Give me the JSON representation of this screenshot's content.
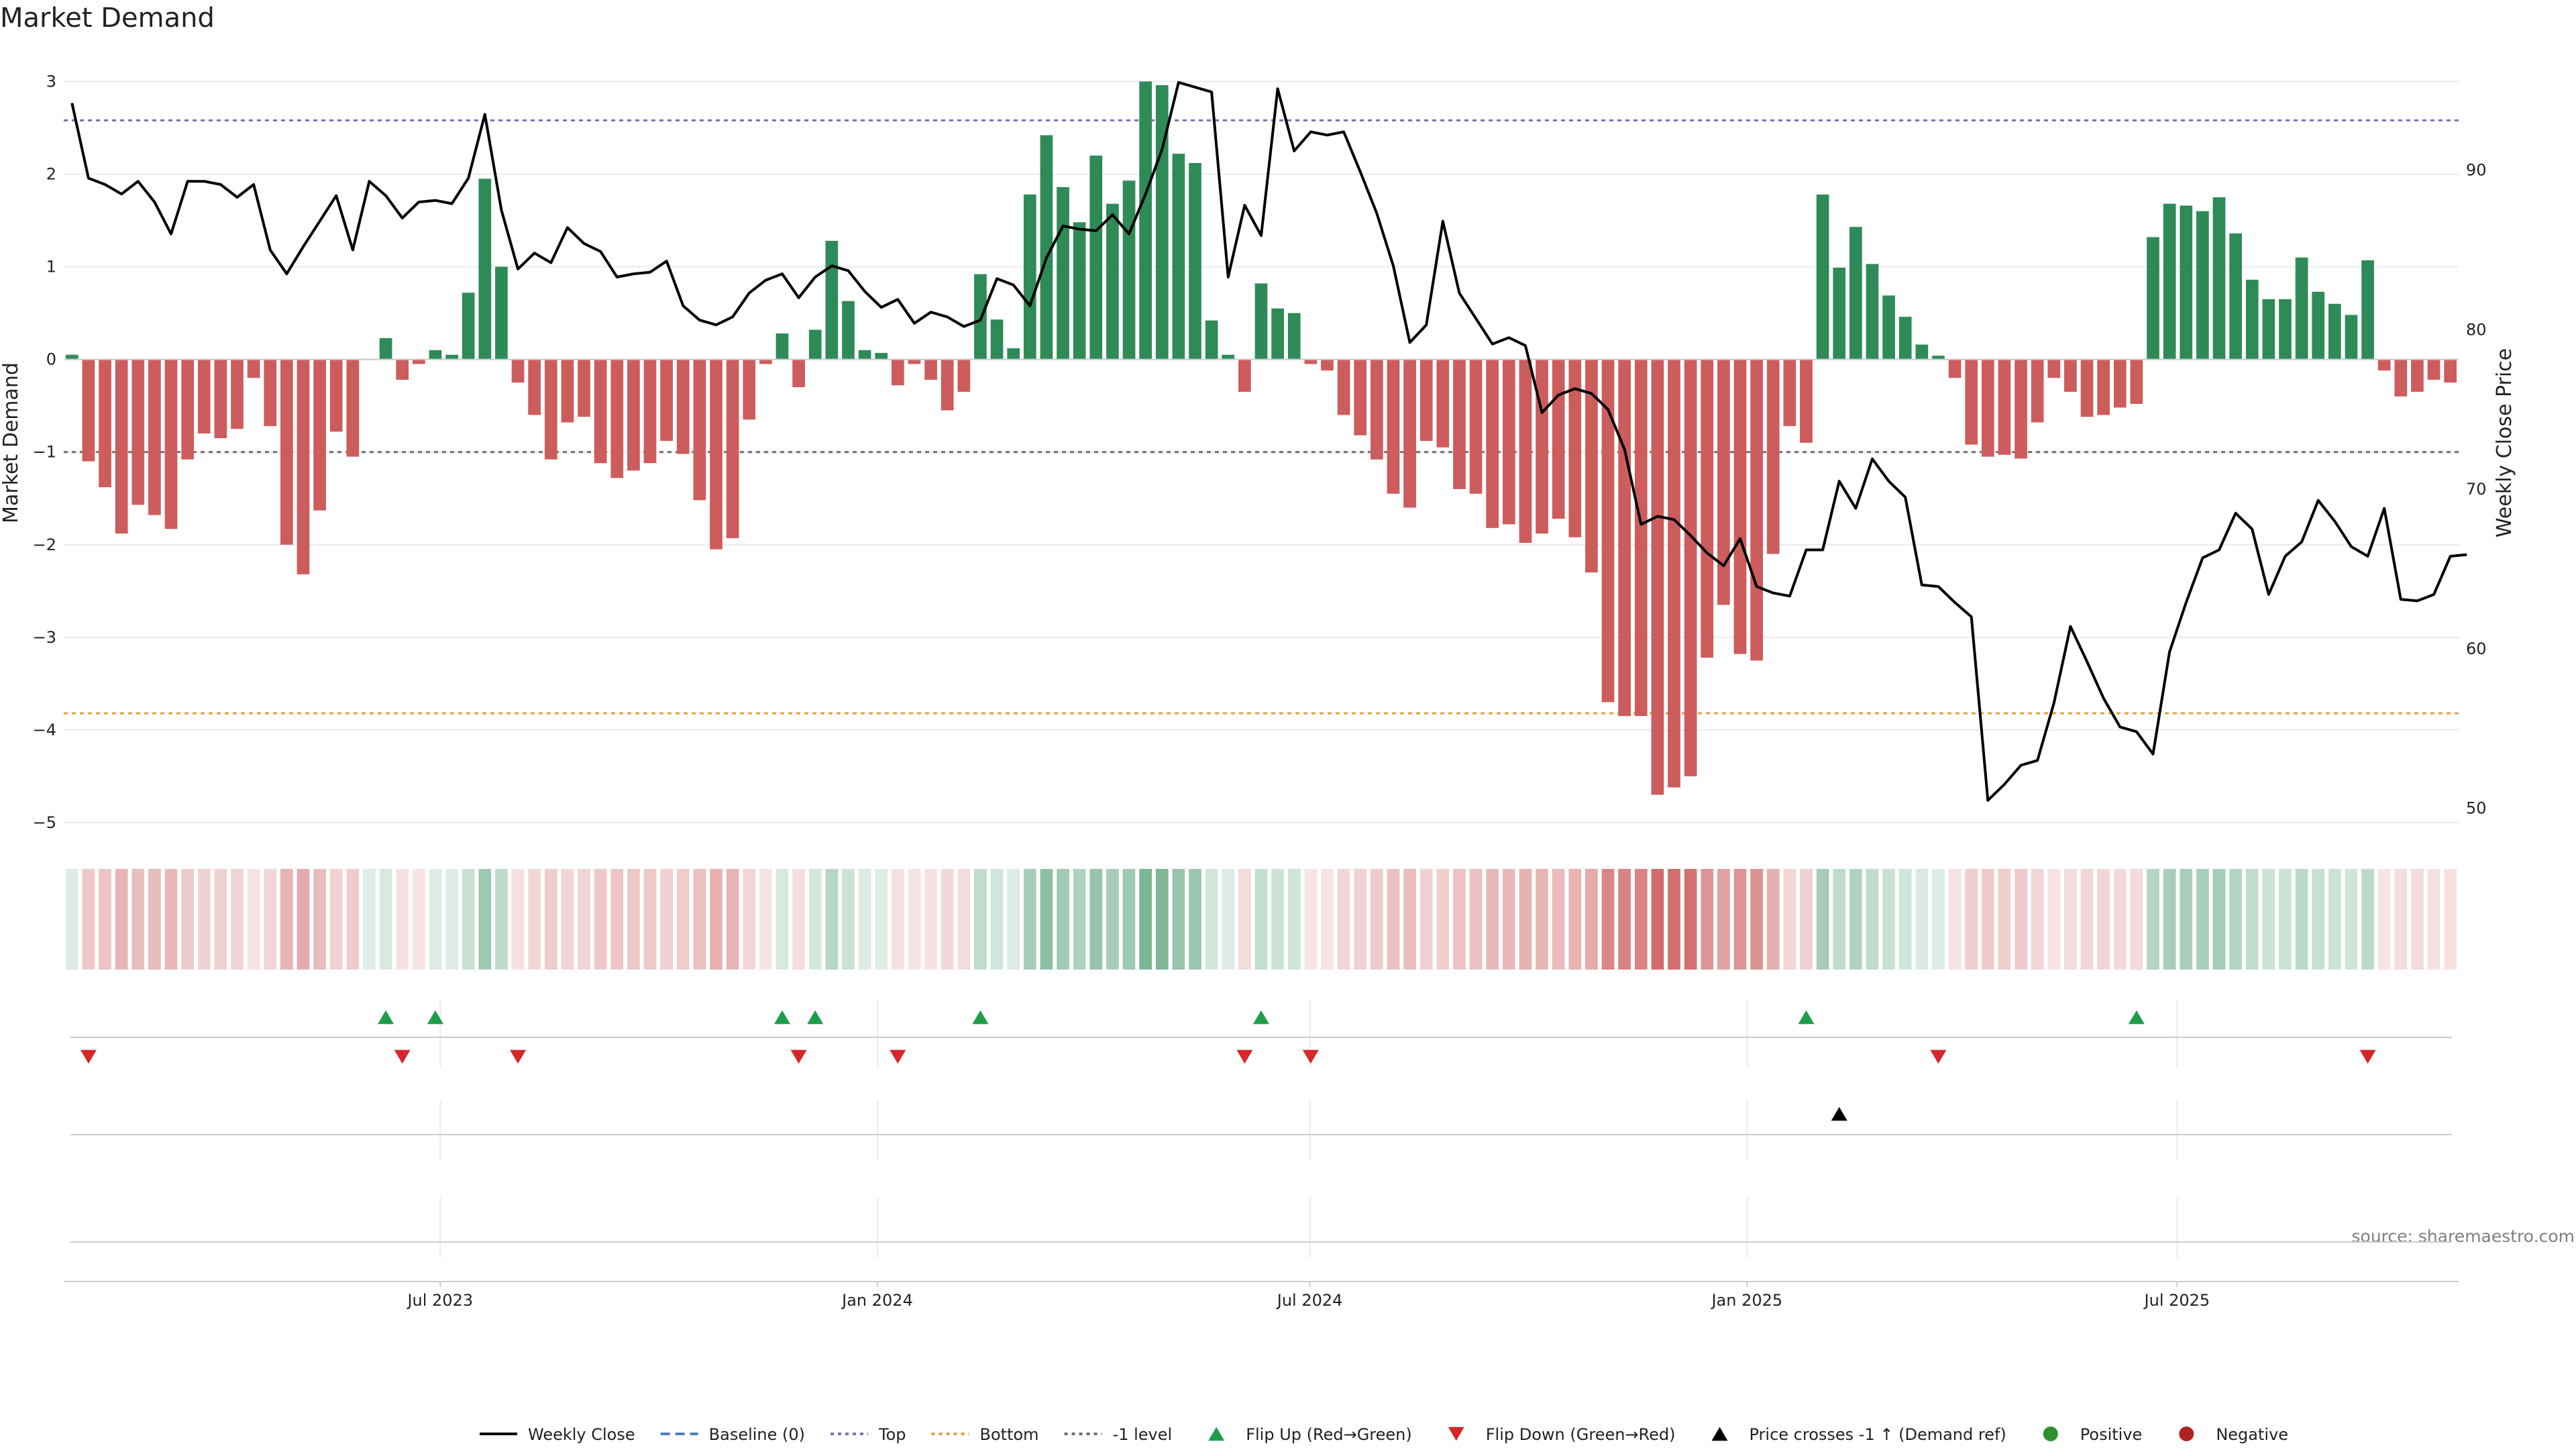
{
  "chart_data": {
    "type": "bar",
    "title": "Market Demand",
    "ylabel": "Market Demand",
    "y2label": "Weekly Close Price",
    "ylim": [
      -5.5,
      3.3
    ],
    "y2lim": [
      46.2,
      97.3
    ],
    "yticks": [
      3,
      2,
      1,
      0,
      -1,
      -2,
      -3,
      -4,
      -5
    ],
    "y2ticks": [
      90,
      80,
      70,
      60,
      50
    ],
    "x_start": "2023-01-27",
    "x_end": "2025-10-24",
    "xticks": [
      {
        "date": "2023-07-01",
        "label": "Jul 2023"
      },
      {
        "date": "2024-01-01",
        "label": "Jan 2024"
      },
      {
        "date": "2024-07-01",
        "label": "Jul 2024"
      },
      {
        "date": "2025-01-01",
        "label": "Jan 2025"
      },
      {
        "date": "2025-07-01",
        "label": "Jul 2025"
      }
    ],
    "reference_lines": [
      {
        "name": "Top",
        "value": 2.58,
        "color": "#7b6fbf"
      },
      {
        "name": "Bottom",
        "value": -3.82,
        "color": "#e0a040"
      },
      {
        "name": "-1 level",
        "value": -1.0,
        "color": "#6f6f6f"
      },
      {
        "name": "Baseline (0)",
        "value": 0,
        "color": "#4f81bd"
      }
    ],
    "series": [
      {
        "name": "Market Demand",
        "values": [
          0.05,
          -1.1,
          -1.38,
          -1.88,
          -1.57,
          -1.68,
          -1.83,
          -1.08,
          -0.8,
          -0.85,
          -0.75,
          -0.2,
          -0.72,
          -2.0,
          -2.32,
          -1.63,
          -0.78,
          -1.05,
          0.0,
          0.23,
          -0.22,
          -0.05,
          0.1,
          0.05,
          0.72,
          1.95,
          1.0,
          -0.25,
          -0.6,
          -1.08,
          -0.68,
          -0.62,
          -1.12,
          -1.28,
          -1.2,
          -1.12,
          -0.88,
          -1.02,
          -1.52,
          -2.05,
          -1.93,
          -0.65,
          -0.05,
          0.28,
          -0.3,
          0.32,
          1.28,
          0.63,
          0.1,
          0.07,
          -0.28,
          -0.05,
          -0.22,
          -0.55,
          -0.35,
          0.92,
          0.43,
          0.12,
          1.78,
          2.42,
          1.86,
          1.48,
          2.2,
          1.68,
          1.93,
          3.0,
          2.96,
          2.22,
          2.12,
          0.42,
          0.05,
          -0.35,
          0.82,
          0.55,
          0.5,
          -0.05,
          -0.12,
          -0.6,
          -0.82,
          -1.08,
          -1.45,
          -1.6,
          -0.88,
          -0.95,
          -1.4,
          -1.45,
          -1.82,
          -1.78,
          -1.98,
          -1.88,
          -1.72,
          -1.92,
          -2.3,
          -3.7,
          -3.85,
          -3.85,
          -4.7,
          -4.62,
          -4.5,
          -3.22,
          -2.65,
          -3.18,
          -3.25,
          -2.1,
          -0.72,
          -0.9,
          1.78,
          0.99,
          1.43,
          1.03,
          0.69,
          0.46,
          0.16,
          0.04,
          -0.2,
          -0.92,
          -1.05,
          -1.03,
          -1.07,
          -0.68,
          -0.2,
          -0.35,
          -0.62,
          -0.6,
          -0.52,
          -0.48,
          1.32,
          1.68,
          1.66,
          1.6,
          1.75,
          1.36,
          0.86,
          0.65,
          0.65,
          1.1,
          0.73,
          0.6,
          0.48,
          1.07,
          -0.12,
          -0.4,
          -0.35,
          -0.22,
          -0.25
        ]
      },
      {
        "name": "Weekly Close",
        "values": [
          94.2,
          89.5,
          89.1,
          88.5,
          89.3,
          88.0,
          86.0,
          89.3,
          89.3,
          89.1,
          88.3,
          89.1,
          85.0,
          83.5,
          85.2,
          86.8,
          88.4,
          85.0,
          89.3,
          88.4,
          87.0,
          88.0,
          88.1,
          87.9,
          89.5,
          93.5,
          87.5,
          83.8,
          84.8,
          84.2,
          86.4,
          85.4,
          84.9,
          83.3,
          83.5,
          83.6,
          84.3,
          81.5,
          80.6,
          80.3,
          80.8,
          82.3,
          83.1,
          83.5,
          82.0,
          83.3,
          84.0,
          83.7,
          82.4,
          81.4,
          81.9,
          80.4,
          81.1,
          80.8,
          80.2,
          80.6,
          83.2,
          82.8,
          81.5,
          84.5,
          86.5,
          86.3,
          86.2,
          87.2,
          86.0,
          88.5,
          91.3,
          95.5,
          95.2,
          94.9,
          83.3,
          87.8,
          85.9,
          95.1,
          91.2,
          92.4,
          92.2,
          92.4,
          89.9,
          87.3,
          84.0,
          79.2,
          80.3,
          86.8,
          82.3,
          80.7,
          79.1,
          79.5,
          79.0,
          74.8,
          75.9,
          76.3,
          76.0,
          75.0,
          72.5,
          67.8,
          68.3,
          68.1,
          67.1,
          66.0,
          65.2,
          66.9,
          63.9,
          63.5,
          63.3,
          66.2,
          66.2,
          70.5,
          68.8,
          71.9,
          70.5,
          69.5,
          64.0,
          63.9,
          62.9,
          62.0,
          50.5,
          51.5,
          52.7,
          53.0,
          56.6,
          61.4,
          59.2,
          56.9,
          55.1,
          54.8,
          53.4,
          59.8,
          62.9,
          65.7,
          66.2,
          68.5,
          67.5,
          63.4,
          65.8,
          66.7,
          69.3,
          68.0,
          66.4,
          65.8,
          68.8,
          63.1,
          63.0,
          63.4,
          65.8,
          65.9
        ]
      }
    ],
    "flip_up_indices": [
      19,
      22,
      43,
      45,
      55,
      72,
      105,
      125
    ],
    "flip_down_indices": [
      1,
      20,
      27,
      44,
      50,
      71,
      75,
      113,
      139
    ],
    "price_cross_indices": [
      107
    ],
    "colors": {
      "positive": "#2e8b57",
      "negative": "#cd5c5c",
      "price_line": "#000000",
      "flip_up": "#1e9e4a",
      "flip_down": "#d62728",
      "cross_marker": "#000000",
      "legend_positive_dot": "#2e8f2e",
      "legend_negative_dot": "#b22222",
      "grid": "#ebebeb",
      "axis": "#cccccc"
    },
    "legend": {
      "placement": "bottom-center",
      "items": [
        {
          "label": "Weekly Close",
          "kind": "line",
          "color": "#000000"
        },
        {
          "label": "Baseline (0)",
          "kind": "dash",
          "color": "#4f81bd"
        },
        {
          "label": "Top",
          "kind": "dot",
          "color": "#7b6fbf"
        },
        {
          "label": "Bottom",
          "kind": "dot",
          "color": "#e0a040"
        },
        {
          "label": "-1 level",
          "kind": "dot",
          "color": "#6f6f6f"
        },
        {
          "label": "Flip Up (Red→Green)",
          "kind": "tri-up",
          "color": "#1e9e4a"
        },
        {
          "label": "Flip Down (Green→Red)",
          "kind": "tri-down",
          "color": "#d62728"
        },
        {
          "label": "Price crosses -1 ↑ (Demand ref)",
          "kind": "tri-up",
          "color": "#000000"
        },
        {
          "label": "Positive",
          "kind": "circle",
          "color": "#2e8f2e"
        },
        {
          "label": "Negative",
          "kind": "circle",
          "color": "#b22222"
        }
      ]
    },
    "source": "source: sharemaestro.com"
  }
}
